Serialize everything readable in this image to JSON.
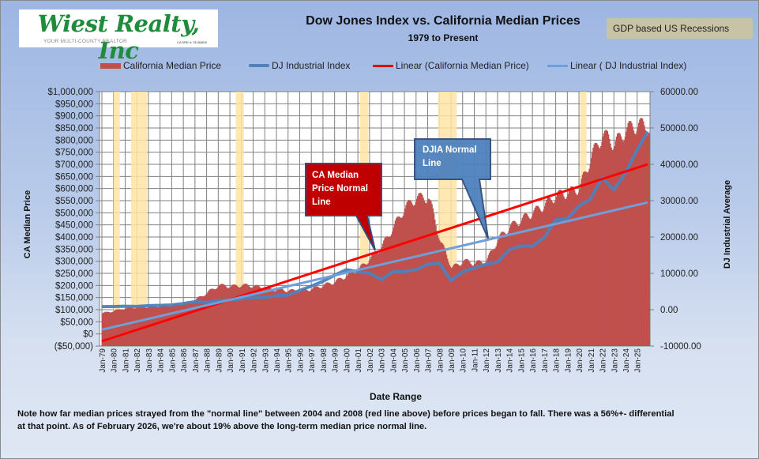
{
  "header": {
    "logo": {
      "name": "Wiest Realty, Inc",
      "tagline": "YOUR MULTI-COUNTY REALTOR",
      "license": "CA DRE #: 01183800"
    },
    "recession_legend": "GDP based US Recessions"
  },
  "colors": {
    "bars": "#c0504d",
    "dj_line": "#4f81bd",
    "ca_trend": "#ff0000",
    "dj_trend": "#6f9fd8",
    "recession": "#ffe4a3",
    "grid": "#808080",
    "callout_red": "#c00000",
    "callout_blue": "#4f81bd"
  },
  "annotations": {
    "ca_callout": [
      "CA Median",
      "Price Normal",
      "Line"
    ],
    "dj_callout": [
      "DJIA Normal",
      "Line"
    ]
  },
  "note": {
    "line1": "Note how far median prices strayed from the \"normal line\" between 2004 and 2008 (red line  above) before prices began to fall.  There  was a 56%+- differential",
    "line2": "at that point.  As of February 2026, we're about 19% above the long-term median price normal line."
  },
  "chart_data": {
    "type": "bar",
    "title": "Dow Jones Index vs. California Median Prices",
    "subtitle": "1979 to Present",
    "xlabel": "Date Range",
    "ylabel": "CA Median  Price",
    "y2label": "DJ Industrial Average",
    "legend_position": "top",
    "legend": [
      "California Median Price",
      "DJ  Industrial Index",
      "Linear (California Median Price)",
      "Linear ( DJ  Industrial Index)"
    ],
    "grid": true,
    "ylim": [
      -50000,
      1000000
    ],
    "y2lim": [
      -10000,
      60000
    ],
    "yticks": [
      "$1,000,000",
      "$950,000",
      "$900,000",
      "$850,000",
      "$800,000",
      "$750,000",
      "$700,000",
      "$650,000",
      "$600,000",
      "$550,000",
      "$500,000",
      "$450,000",
      "$400,000",
      "$350,000",
      "$300,000",
      "$250,000",
      "$200,000",
      "$150,000",
      "$100,000",
      "$50,000",
      "$0",
      "($50,000)"
    ],
    "y2ticks": [
      "60000.00",
      "50000.00",
      "40000.00",
      "30000.00",
      "20000.00",
      "10000.00",
      "0.00",
      "-10000.00"
    ],
    "categories": [
      "Jan-79",
      "Jan-80",
      "Jan-81",
      "Jan-82",
      "Jan-83",
      "Jan-84",
      "Jan-85",
      "Jan-86",
      "Jan-87",
      "Jan-88",
      "Jan-89",
      "Jan-90",
      "Jan-91",
      "Jan-92",
      "Jan-93",
      "Jan-94",
      "Jan-95",
      "Jan-96",
      "Jan-97",
      "Jan-98",
      "Jan-99",
      "Jan-00",
      "Jan-01",
      "Jan-02",
      "Jan-03",
      "Jan-04",
      "Jan-05",
      "Jan-06",
      "Jan-07",
      "Jan-08",
      "Jan-09",
      "Jan-10",
      "Jan-11",
      "Jan-12",
      "Jan-13",
      "Jan-14",
      "Jan-15",
      "Jan-16",
      "Jan-17",
      "Jan-18",
      "Jan-19",
      "Jan-20",
      "Jan-21",
      "Jan-22",
      "Jan-23",
      "Jan-24",
      "Jan-25"
    ],
    "series": [
      {
        "name": "California Median Price",
        "axis": "left",
        "type": "bar",
        "x": [
          1979,
          1980,
          1981,
          1982,
          1983,
          1984,
          1985,
          1986,
          1987,
          1988,
          1989,
          1990,
          1991,
          1992,
          1993,
          1994,
          1995,
          1996,
          1997,
          1998,
          1999,
          2000,
          2001,
          2002,
          2003,
          2004,
          2005,
          2006,
          2007,
          2008,
          2009,
          2010,
          2011,
          2012,
          2013,
          2014,
          2015,
          2016,
          2017,
          2018,
          2019,
          2020,
          2021,
          2022,
          2023,
          2024,
          2025,
          2026
        ],
        "values": [
          85000,
          95000,
          105000,
          110000,
          112000,
          115000,
          118000,
          125000,
          140000,
          170000,
          200000,
          195000,
          200000,
          197000,
          185000,
          182000,
          178000,
          177000,
          185000,
          200000,
          215000,
          240000,
          265000,
          310000,
          360000,
          440000,
          520000,
          560000,
          560000,
          380000,
          270000,
          300000,
          290000,
          300000,
          390000,
          440000,
          470000,
          500000,
          530000,
          570000,
          580000,
          600000,
          730000,
          820000,
          780000,
          840000,
          860000,
          850000
        ]
      },
      {
        "name": "DJ  Industrial Index",
        "axis": "right",
        "type": "line",
        "x": [
          1979,
          1980,
          1981,
          1982,
          1983,
          1984,
          1985,
          1986,
          1987,
          1988,
          1989,
          1990,
          1991,
          1992,
          1993,
          1994,
          1995,
          1996,
          1997,
          1998,
          1999,
          2000,
          2001,
          2002,
          2003,
          2004,
          2005,
          2006,
          2007,
          2008,
          2009,
          2010,
          2011,
          2012,
          2013,
          2014,
          2015,
          2016,
          2017,
          2018,
          2019,
          2020,
          2021,
          2022,
          2023,
          2024,
          2025,
          2026
        ],
        "values": [
          850,
          880,
          950,
          900,
          1100,
          1200,
          1300,
          1700,
          2200,
          2000,
          2500,
          2700,
          3000,
          3250,
          3400,
          3800,
          4000,
          5300,
          6500,
          7800,
          9500,
          11000,
          10500,
          10000,
          8300,
          10400,
          10500,
          11000,
          12500,
          12800,
          8000,
          10400,
          11500,
          12500,
          13100,
          16500,
          17500,
          17500,
          19800,
          24700,
          25000,
          28500,
          30500,
          36300,
          33000,
          37700,
          44000,
          49000
        ]
      },
      {
        "name": "Linear (California Median Price)",
        "axis": "left",
        "type": "trendline",
        "x": [
          1979,
          2026
        ],
        "values": [
          -30000,
          700000
        ]
      },
      {
        "name": "Linear ( DJ  Industrial Index)",
        "axis": "right",
        "type": "trendline",
        "x": [
          1979,
          2026
        ],
        "values": [
          -5500,
          29500
        ]
      }
    ],
    "recessions": [
      {
        "start": 1980.0,
        "end": 1980.5
      },
      {
        "start": 1981.5,
        "end": 1982.9
      },
      {
        "start": 1990.5,
        "end": 1991.2
      },
      {
        "start": 2001.2,
        "end": 2001.9
      },
      {
        "start": 2007.9,
        "end": 2009.5
      },
      {
        "start": 2020.1,
        "end": 2020.4
      }
    ]
  }
}
